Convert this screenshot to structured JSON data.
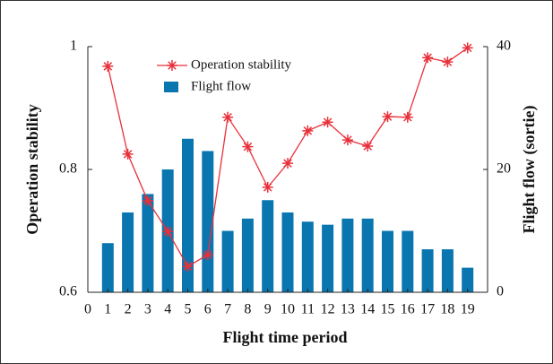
{
  "chart_data": {
    "type": "bar_line",
    "x_label": "Flight time period",
    "y_label": "Operation stability",
    "y2_label": "Flight flow (sortie)",
    "x": [
      1,
      2,
      3,
      4,
      5,
      6,
      7,
      8,
      9,
      10,
      11,
      12,
      13,
      14,
      15,
      16,
      17,
      18,
      19
    ],
    "xlim": [
      0,
      20
    ],
    "xticks": [
      0,
      1,
      2,
      3,
      4,
      5,
      6,
      7,
      8,
      9,
      10,
      11,
      12,
      13,
      14,
      15,
      16,
      17,
      18,
      19
    ],
    "ylim": [
      0.6,
      1.0
    ],
    "yticks": [
      0.6,
      0.8,
      {
        "value": 1.0,
        "label": "1"
      }
    ],
    "y2lim": [
      0,
      40
    ],
    "y2ticks": [
      0,
      20,
      40
    ],
    "legend": "top",
    "series": [
      {
        "name": "Operation stability",
        "kind": "line",
        "color": "#e8303a",
        "values": [
          0.968,
          0.825,
          0.749,
          0.699,
          0.642,
          0.661,
          0.885,
          0.837,
          0.771,
          0.81,
          0.863,
          0.877,
          0.848,
          0.838,
          0.886,
          0.885,
          0.982,
          0.975,
          0.998
        ]
      },
      {
        "name": "Flight flow",
        "kind": "bar",
        "axis": "y2",
        "color": "#0a76b0",
        "values": [
          8,
          13,
          16,
          20,
          25,
          23,
          10,
          12,
          15,
          13,
          11.5,
          11,
          12,
          12,
          10,
          10,
          7,
          7,
          4
        ]
      }
    ]
  }
}
